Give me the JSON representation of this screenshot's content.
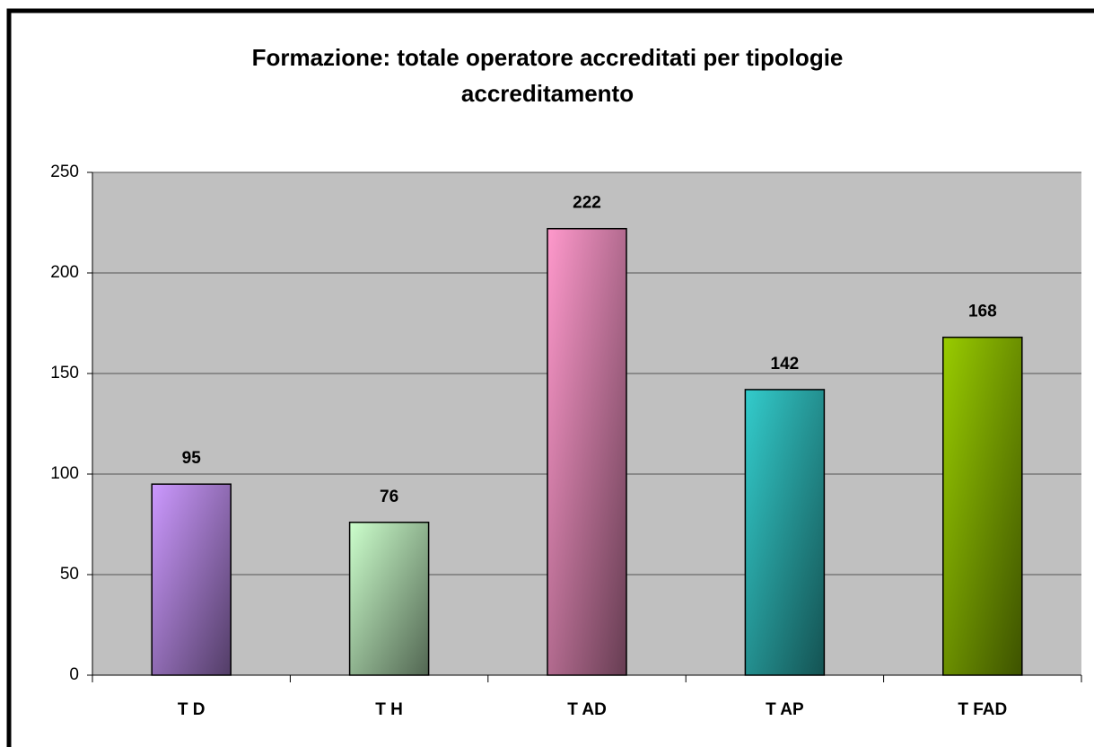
{
  "chart_data": {
    "type": "bar",
    "title": "Formazione: totale operatore accreditati per tipologie accreditamento",
    "categories": [
      "T D",
      "T H",
      "T AD",
      "T AP",
      "T FAD"
    ],
    "values": [
      95,
      76,
      222,
      142,
      168
    ],
    "colors": [
      "#cc99ff",
      "#ccffcc",
      "#ff99cc",
      "#33cccc",
      "#99cc00"
    ],
    "ylim": [
      0,
      250
    ],
    "yticks": [
      0,
      50,
      100,
      150,
      200,
      250
    ],
    "grid": true
  }
}
